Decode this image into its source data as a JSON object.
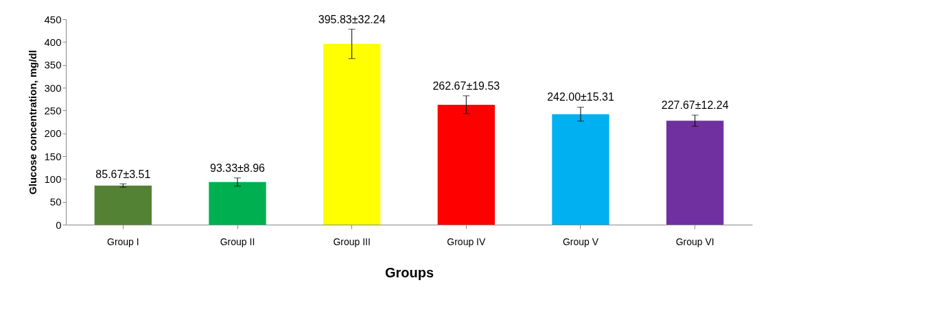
{
  "chart_data": {
    "type": "bar",
    "xlabel": "Groups",
    "ylabel": "Glucose concentration, mg/dl",
    "categories": [
      "Group I",
      "Group II",
      "Group III",
      "Group IV",
      "Group V",
      "Group VI"
    ],
    "values": [
      85.67,
      93.33,
      395.83,
      262.67,
      242.0,
      227.67
    ],
    "errors": [
      3.51,
      8.96,
      32.24,
      19.53,
      15.31,
      12.24
    ],
    "value_labels": [
      "85.67±3.51",
      "93.33±8.96",
      "395.83±32.24",
      "262.67±19.53",
      "242.00±15.31",
      "227.67±12.24"
    ],
    "colors": [
      "#548235",
      "#00b050",
      "#ffff00",
      "#ff0000",
      "#00b0f0",
      "#7030a0"
    ],
    "ylim": [
      0,
      450
    ],
    "yticks": [
      0,
      50,
      100,
      150,
      200,
      250,
      300,
      350,
      400,
      450
    ],
    "grid": false
  }
}
